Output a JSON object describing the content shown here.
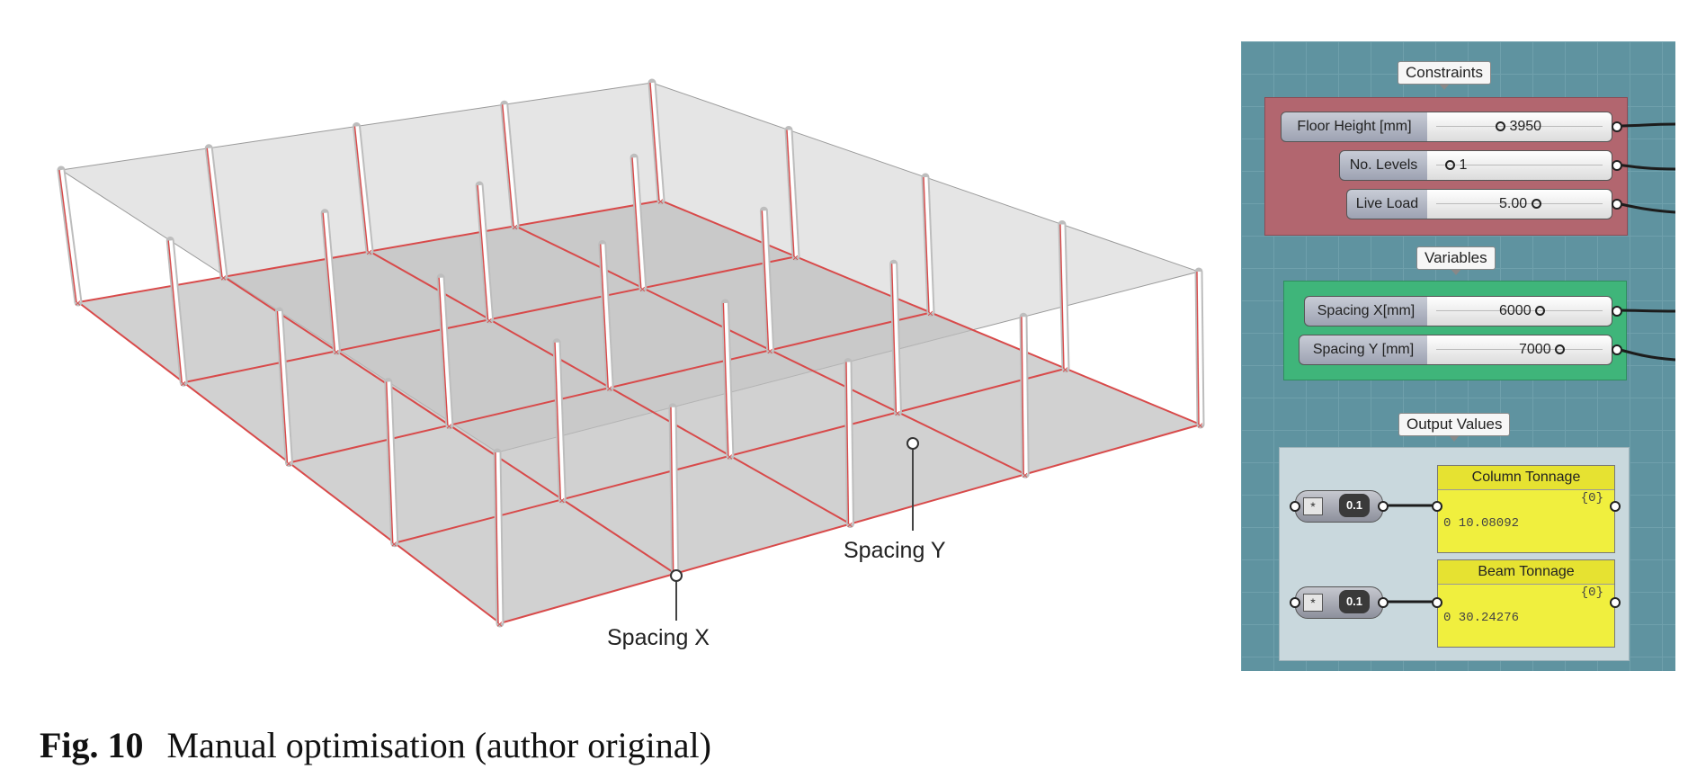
{
  "model": {
    "spacing_x_label": "Spacing X",
    "spacing_y_label": "Spacing Y"
  },
  "grasshopper": {
    "constraints": {
      "title": "Constraints",
      "sliders": [
        {
          "name": "Floor Height [mm]",
          "value": "3950"
        },
        {
          "name": "No. Levels",
          "value": "1"
        },
        {
          "name": "Live Load",
          "value": "5.00"
        }
      ]
    },
    "variables": {
      "title": "Variables",
      "sliders": [
        {
          "name": "Spacing X[mm]",
          "value": "6000"
        },
        {
          "name": "Spacing Y [mm]",
          "value": "7000"
        }
      ]
    },
    "outputs": {
      "title": "Output Values",
      "panels": [
        {
          "title": "Column Tonnage",
          "index": "{0}",
          "value": "0 10.08092"
        },
        {
          "title": "Beam Tonnage",
          "index": "{0}",
          "value": "0 30.24276"
        }
      ],
      "number_label": "0.1"
    }
  },
  "caption": {
    "label": "Fig. 10",
    "text": "Manual optimisation (author original)"
  },
  "colors": {
    "beam_red": "#d84a4a",
    "slab_grey": "#c2c2c2",
    "canvas_teal": "#5f93a0",
    "panel_yellow": "#f0ef3e"
  }
}
